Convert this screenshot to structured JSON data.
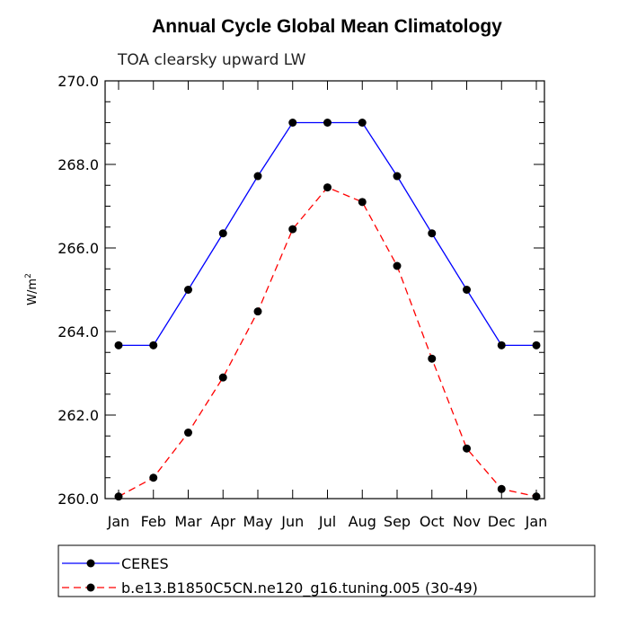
{
  "chart_data": {
    "type": "line",
    "title": "Annual Cycle Global Mean Climatology",
    "subtitle": "TOA clearsky upward LW",
    "ylabel_base": "W/m",
    "ylabel_sup": "2",
    "ylim": [
      260.0,
      270.0
    ],
    "yticks": [
      "260.0",
      "262.0",
      "264.0",
      "266.0",
      "268.0",
      "270.0"
    ],
    "categories": [
      "Jan",
      "Feb",
      "Mar",
      "Apr",
      "May",
      "Jun",
      "Jul",
      "Aug",
      "Sep",
      "Oct",
      "Nov",
      "Dec",
      "Jan"
    ],
    "legend_position": "bottom",
    "series": [
      {
        "name": "CERES",
        "color": "#0000ff",
        "dash": "solid",
        "values": [
          263.67,
          263.67,
          265.0,
          266.35,
          267.72,
          269.0,
          269.0,
          269.0,
          267.72,
          266.35,
          265.0,
          263.67,
          263.67
        ]
      },
      {
        "name": "b.e13.B1850C5CN.ne120_g16.tuning.005 (30-49)",
        "color": "#ff0000",
        "dash": "dashed",
        "values": [
          260.05,
          260.5,
          261.58,
          262.9,
          264.48,
          266.45,
          267.45,
          267.1,
          265.57,
          263.35,
          261.2,
          260.23,
          260.05
        ]
      }
    ]
  }
}
